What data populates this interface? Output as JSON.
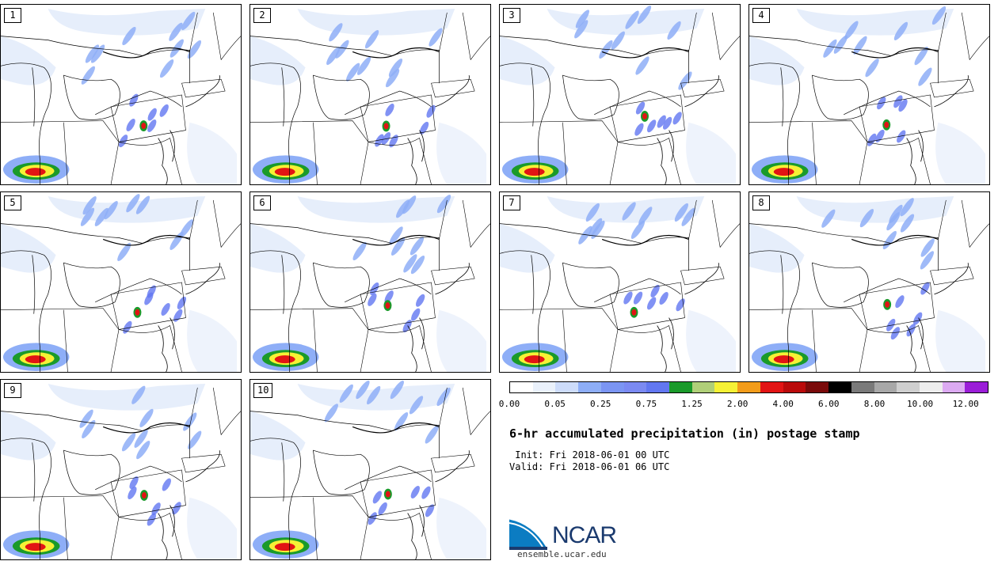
{
  "panels": [
    {
      "label": "1"
    },
    {
      "label": "2"
    },
    {
      "label": "3"
    },
    {
      "label": "4"
    },
    {
      "label": "5"
    },
    {
      "label": "6"
    },
    {
      "label": "7"
    },
    {
      "label": "8"
    },
    {
      "label": "9"
    },
    {
      "label": "10"
    }
  ],
  "legend": {
    "colors": [
      "#ffffff",
      "#eaf1fb",
      "#cddcfa",
      "#8eaef7",
      "#7b95f3",
      "#7b8af2",
      "#6277f1",
      "#1a9a2a",
      "#b0cf78",
      "#f6f135",
      "#f39c1a",
      "#e21414",
      "#ba0a0a",
      "#7a0a0a",
      "#000000",
      "#7a7a7a",
      "#a8a8a8",
      "#cfcfcf",
      "#ededed",
      "#dcaaf2",
      "#9b1ed8"
    ],
    "tick_labels": [
      "0.00",
      "0.05",
      "0.25",
      "0.75",
      "1.25",
      "2.00",
      "4.00",
      "6.00",
      "8.00",
      "10.00",
      "12.00"
    ]
  },
  "title": "6-hr accumulated precipitation (in) postage stamp",
  "init": " Init: Fri 2018-06-01 00 UTC",
  "valid": "Valid: Fri 2018-06-01 06 UTC",
  "logo": {
    "text": "NCAR",
    "website": "ensemble.ucar.edu"
  }
}
